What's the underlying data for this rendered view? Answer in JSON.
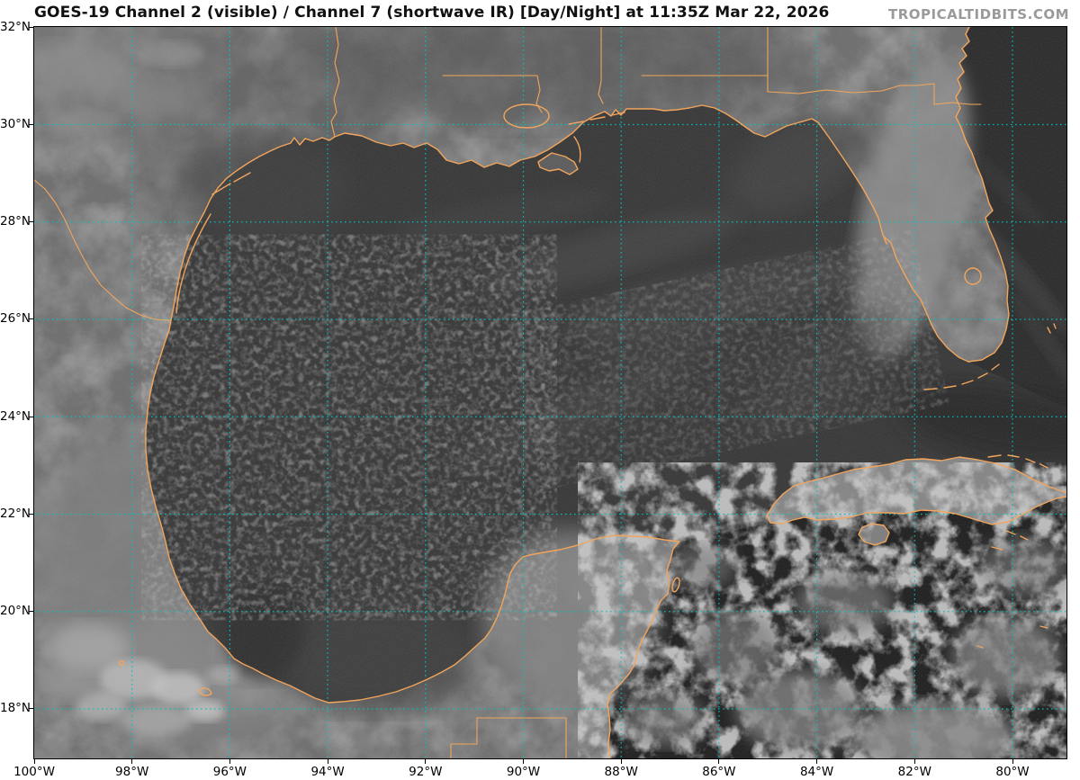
{
  "header": {
    "title": "GOES-19 Channel 2 (visible) / Channel 7 (shortwave IR) [Day/Night] at 11:35Z Mar 22, 2026",
    "watermark": "TROPICALTIDBITS.COM"
  },
  "axes": {
    "lat_labels": [
      "32°N",
      "30°N",
      "28°N",
      "26°N",
      "24°N",
      "22°N",
      "20°N",
      "18°N"
    ],
    "lon_labels": [
      "100°W",
      "98°W",
      "96°W",
      "94°W",
      "92°W",
      "90°W",
      "88°W",
      "86°W",
      "84°W",
      "82°W",
      "80°W"
    ]
  },
  "colors": {
    "coastline": "#f2a55c",
    "grid": "#00c2c2",
    "title_text": "#111111",
    "watermark_text": "#9a9a9a",
    "land": "#6f6f6f",
    "gulf_water": "#3a3a3a",
    "caribbean_water": "#222222",
    "atlantic_water": "#2e2e2e",
    "cuba_land": "#858585"
  },
  "map_features": [
    "gulf-of-mexico",
    "caribbean-sea",
    "atlantic-ocean",
    "texas-coast",
    "louisiana-mississippi-delta",
    "florida-peninsula",
    "mexico-coast",
    "yucatan-peninsula",
    "cuba",
    "isla-de-la-juventud",
    "rio-grande-border",
    "us-state-borders",
    "mexico-guatemala-belize-borders"
  ]
}
